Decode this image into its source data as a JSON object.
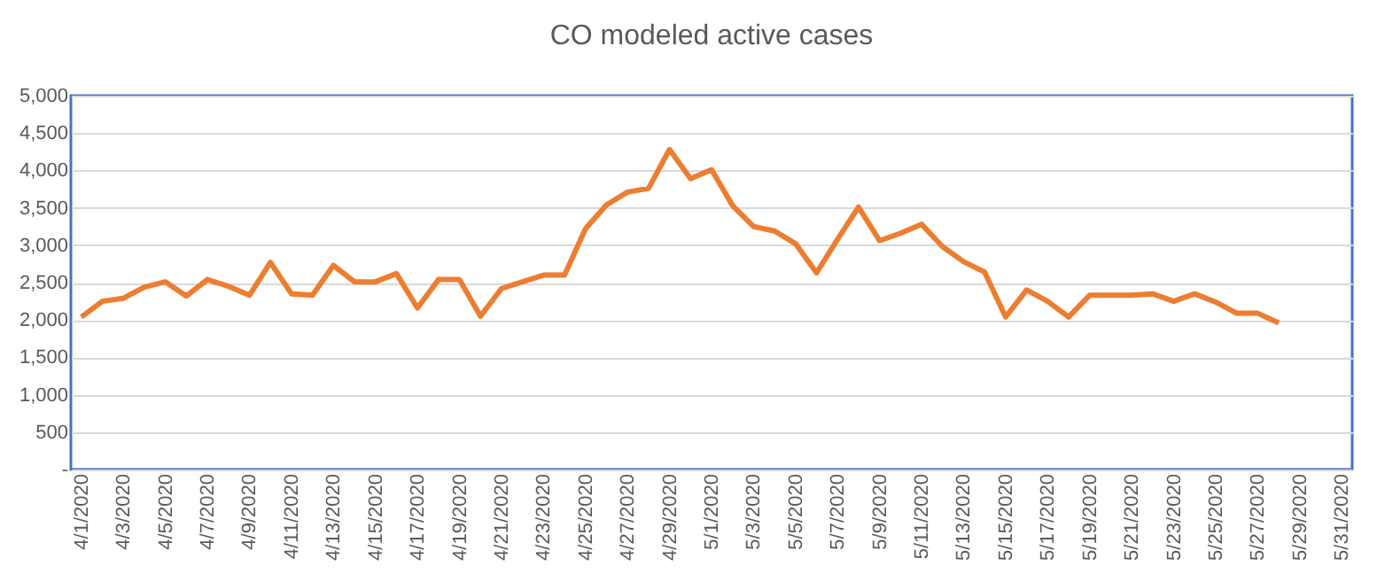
{
  "chart_data": {
    "type": "line",
    "title": "CO modeled active cases",
    "categories": [
      "4/1/2020",
      null,
      "4/3/2020",
      null,
      "4/5/2020",
      null,
      "4/7/2020",
      null,
      "4/9/2020",
      null,
      "4/11/2020",
      null,
      "4/13/2020",
      null,
      "4/15/2020",
      null,
      "4/17/2020",
      null,
      "4/19/2020",
      null,
      "4/21/2020",
      null,
      "4/23/2020",
      null,
      "4/25/2020",
      null,
      "4/27/2020",
      null,
      "4/29/2020",
      null,
      "5/1/2020",
      null,
      "5/3/2020",
      null,
      "5/5/2020",
      null,
      "5/7/2020",
      null,
      "5/9/2020",
      null,
      "5/11/2020",
      null,
      "5/13/2020",
      null,
      "5/15/2020",
      null,
      "5/17/2020",
      null,
      "5/19/2020",
      null,
      "5/21/2020",
      null,
      "5/23/2020",
      null,
      "5/25/2020",
      null,
      "5/27/2020",
      null,
      "5/29/2020",
      null,
      "5/31/2020"
    ],
    "series": [
      {
        "color": "#ed7d31",
        "values": [
          2040,
          2250,
          2290,
          2440,
          2510,
          2320,
          2540,
          2450,
          2330,
          2770,
          2350,
          2330,
          2730,
          2510,
          2510,
          2620,
          2160,
          2540,
          2540,
          2050,
          2420,
          2510,
          2600,
          2600,
          3220,
          3540,
          3710,
          3760,
          4280,
          3890,
          4010,
          3530,
          3250,
          3190,
          3020,
          2630,
          3080,
          3510,
          3060,
          3160,
          3280,
          2980,
          2780,
          2640,
          2040,
          2400,
          2250,
          2040,
          2330,
          2330,
          2330,
          2350,
          2250,
          2350,
          2240,
          2090,
          2090,
          1960,
          null,
          null,
          null
        ]
      }
    ],
    "ylim": [
      0,
      5000
    ],
    "yticks": [
      {
        "value": 0,
        "label": "-"
      },
      {
        "value": 500,
        "label": "500"
      },
      {
        "value": 1000,
        "label": "1,000"
      },
      {
        "value": 1500,
        "label": "1,500"
      },
      {
        "value": 2000,
        "label": "2,000"
      },
      {
        "value": 2500,
        "label": "2,500"
      },
      {
        "value": 3000,
        "label": "3,000"
      },
      {
        "value": 3500,
        "label": "3,500"
      },
      {
        "value": 4000,
        "label": "4,000"
      },
      {
        "value": 4500,
        "label": "4,500"
      },
      {
        "value": 5000,
        "label": "5,000"
      }
    ],
    "grid": "y",
    "marker": "none",
    "line_style": "solid"
  }
}
